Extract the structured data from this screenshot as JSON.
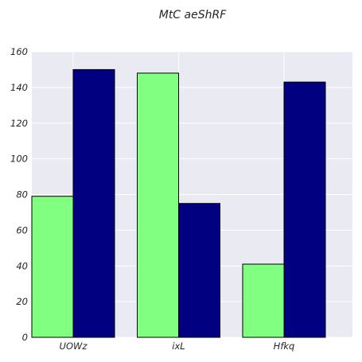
{
  "chart_data": {
    "type": "bar",
    "title": "MtC aeShRF",
    "xlabel": "",
    "ylabel": "",
    "categories": [
      "UOWz",
      "ixL",
      "Hfkq"
    ],
    "series": [
      {
        "values": [
          79,
          148,
          41
        ],
        "color": "#80ff80"
      },
      {
        "values": [
          150,
          75,
          143
        ],
        "color": "#000080"
      }
    ],
    "ylim": [
      0,
      160
    ],
    "yticks": [
      "0",
      "20",
      "40",
      "60",
      "80",
      "100",
      "120",
      "140",
      "160"
    ],
    "grid": true,
    "background_color": "#eaeaf2",
    "grid_color": "#ffffff",
    "legend": "none"
  }
}
